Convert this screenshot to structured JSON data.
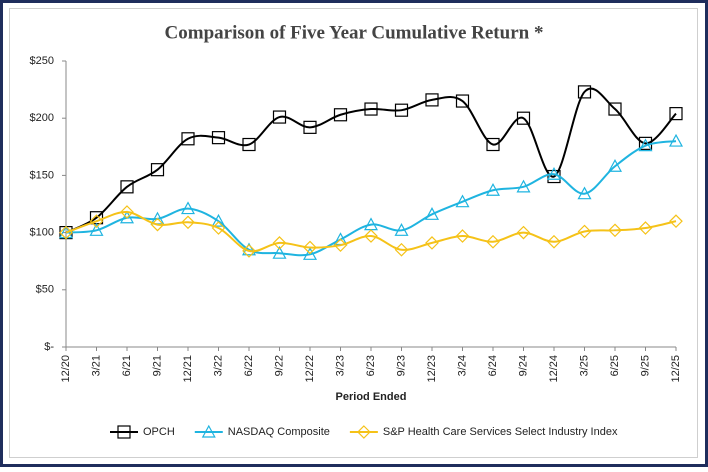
{
  "chart_data": {
    "type": "line",
    "title": "Comparison of Five Year Cumulative Return *",
    "x_label": "Period Ended",
    "categories": [
      "12/20",
      "3/21",
      "6/21",
      "9/21",
      "12/21",
      "3/22",
      "6/22",
      "9/22",
      "12/22",
      "3/23",
      "6/23",
      "9/23",
      "12/23",
      "3/24",
      "6/24",
      "9/24",
      "12/24",
      "3/25",
      "6/25",
      "9/25",
      "12/25"
    ],
    "series": [
      {
        "name": "OPCH",
        "color": "#000000",
        "marker": "square",
        "values": [
          100,
          113,
          140,
          155,
          182,
          183,
          177,
          201,
          192,
          203,
          208,
          207,
          216,
          215,
          177,
          200,
          149,
          223,
          208,
          178,
          204
        ]
      },
      {
        "name": "NASDAQ Composite",
        "color": "#1fb4e0",
        "marker": "triangle",
        "values": [
          100,
          102,
          113,
          112,
          121,
          110,
          85,
          82,
          81,
          94,
          107,
          102,
          116,
          127,
          137,
          140,
          151,
          134,
          158,
          176,
          180
        ]
      },
      {
        "name": "S&P Health Care Services Select Industry Index",
        "color": "#f5c218",
        "marker": "diamond",
        "values": [
          100,
          110,
          118,
          107,
          109,
          104,
          84,
          91,
          87,
          89,
          97,
          85,
          91,
          97,
          92,
          100,
          92,
          101,
          102,
          104,
          110
        ]
      }
    ],
    "ylim": [
      0,
      250
    ],
    "yticks": [
      {
        "value": 0,
        "label": "$-"
      },
      {
        "value": 50,
        "label": "$50"
      },
      {
        "value": 100,
        "label": "$100"
      },
      {
        "value": 150,
        "label": "$150"
      },
      {
        "value": 200,
        "label": "$200"
      },
      {
        "value": 250,
        "label": "$250"
      }
    ],
    "smooth": true,
    "legend": "bottom"
  }
}
